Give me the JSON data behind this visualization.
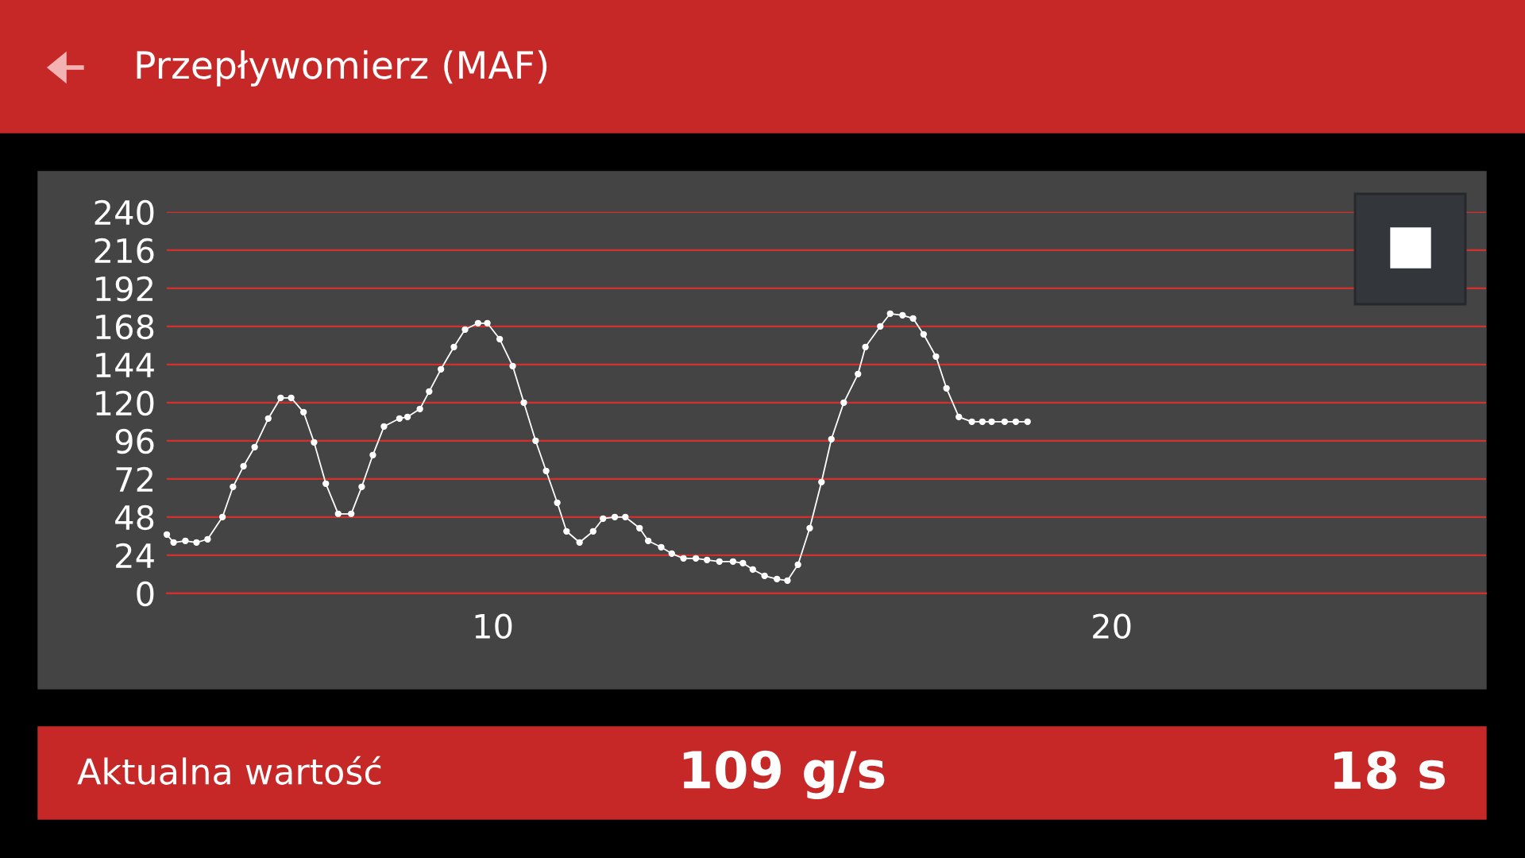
{
  "chart_data": {
    "type": "line",
    "title": "Przepływomierz (MAF)",
    "annotations": [
      "Aktualna wartość",
      "109 g/s",
      "18 s"
    ],
    "xlim": [
      4.73,
      26.05
    ],
    "xticks": [
      10,
      20
    ],
    "ylim": [
      0,
      240
    ],
    "yticks": [
      0,
      24,
      48,
      72,
      96,
      120,
      144,
      168,
      192,
      216,
      240
    ],
    "grid": "y",
    "marker": "circle",
    "line_style": "solid",
    "series": [
      {
        "color": "#ffffff",
        "x": [
          4.73,
          4.84,
          5.03,
          5.21,
          5.39,
          5.63,
          5.8,
          5.97,
          6.15,
          6.37,
          6.57,
          6.74,
          6.94,
          7.11,
          7.3,
          7.5,
          7.71,
          7.88,
          8.06,
          8.24,
          8.49,
          8.62,
          8.82,
          8.97,
          9.16,
          9.37,
          9.55,
          9.76,
          9.91,
          10.11,
          10.32,
          10.5,
          10.69,
          10.86,
          11.04,
          11.19,
          11.4,
          11.62,
          11.78,
          11.97,
          12.14,
          12.37,
          12.51,
          12.72,
          12.89,
          13.08,
          13.28,
          13.46,
          13.66,
          13.88,
          14.04,
          14.2,
          14.39,
          14.59,
          14.76,
          14.93,
          15.12,
          15.31,
          15.47,
          15.67,
          15.9,
          16.02,
          16.26,
          16.42,
          16.62,
          16.79,
          16.96,
          17.16,
          17.33,
          17.53,
          17.74,
          17.91,
          18.06,
          18.27,
          18.45,
          18.64
        ],
        "values": [
          37,
          32,
          33,
          32,
          34,
          48,
          67,
          80,
          92,
          110,
          123,
          123,
          114,
          95,
          69,
          50,
          50,
          67,
          87,
          105,
          110,
          111,
          116,
          127,
          141,
          155,
          166,
          170,
          170,
          160,
          143,
          120,
          96,
          77,
          57,
          39,
          32,
          39,
          47,
          48,
          48,
          41,
          33,
          29,
          25,
          22,
          22,
          21,
          20,
          20,
          19,
          15,
          11,
          9,
          8,
          18,
          41,
          70,
          97,
          120,
          138,
          155,
          168,
          176,
          175,
          173,
          163,
          149,
          129,
          111,
          108,
          108,
          108,
          108,
          108,
          108
        ]
      }
    ]
  }
}
